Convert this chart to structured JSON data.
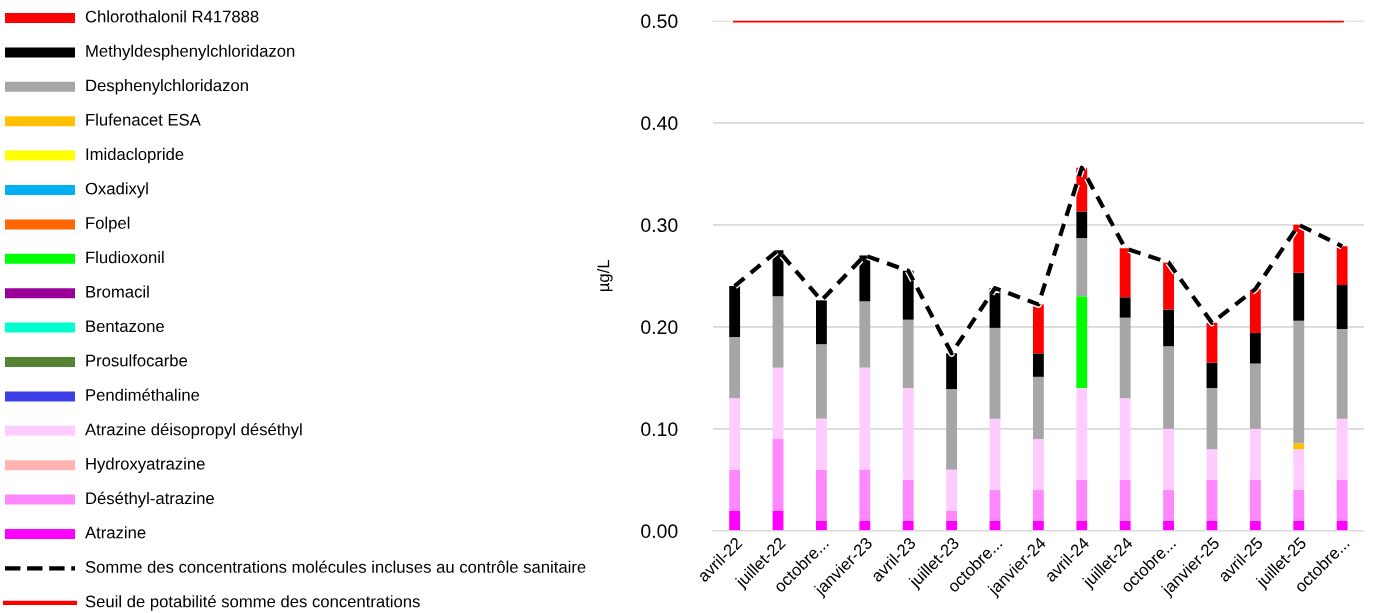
{
  "chart_data": {
    "type": "bar",
    "stacked": true,
    "ylabel": "µg/L",
    "categories": [
      "avril-22",
      "juillet-22",
      "octobre...",
      "janvier-23",
      "avril-23",
      "juillet-23",
      "octobre...",
      "janvier-24",
      "avril-24",
      "juillet-24",
      "octobre...",
      "janvier-25",
      "avril-25",
      "juillet-25",
      "octobre..."
    ],
    "series": [
      {
        "name": "Atrazine",
        "color": "#ff00ff",
        "values": [
          0.02,
          0.02,
          0.01,
          0.01,
          0.01,
          0.01,
          0.01,
          0.01,
          0.01,
          0.01,
          0.01,
          0.01,
          0.01,
          0.01,
          0.01
        ]
      },
      {
        "name": "Déséthyl-atrazine",
        "color": "#ff88ff",
        "values": [
          0.04,
          0.07,
          0.05,
          0.05,
          0.04,
          0.01,
          0.03,
          0.03,
          0.04,
          0.04,
          0.03,
          0.04,
          0.04,
          0.03,
          0.04
        ]
      },
      {
        "name": "Hydroxyatrazine",
        "color": "#ffb3b3",
        "values": [
          null,
          null,
          null,
          null,
          null,
          null,
          null,
          null,
          null,
          null,
          null,
          null,
          null,
          null,
          null
        ]
      },
      {
        "name": "Atrazine déisopropyl déséthyl",
        "color": "#ffccff",
        "values": [
          0.07,
          0.07,
          0.05,
          0.1,
          0.09,
          0.04,
          0.07,
          0.05,
          0.09,
          0.08,
          0.06,
          0.03,
          0.05,
          0.04,
          0.06
        ]
      },
      {
        "name": "Pendiméthaline",
        "color": "#3f3fe8",
        "values": [
          null,
          null,
          null,
          null,
          null,
          null,
          null,
          null,
          null,
          null,
          null,
          null,
          null,
          null,
          null
        ]
      },
      {
        "name": "Prosulfocarbe",
        "color": "#548235",
        "values": [
          null,
          null,
          null,
          null,
          null,
          null,
          null,
          null,
          null,
          null,
          null,
          null,
          null,
          null,
          null
        ]
      },
      {
        "name": "Bentazone",
        "color": "#00ffcc",
        "values": [
          null,
          null,
          null,
          null,
          null,
          null,
          null,
          null,
          null,
          null,
          null,
          null,
          null,
          null,
          null
        ]
      },
      {
        "name": "Bromacil",
        "color": "#990099",
        "values": [
          null,
          null,
          null,
          null,
          null,
          null,
          null,
          null,
          null,
          null,
          null,
          null,
          null,
          null,
          null
        ]
      },
      {
        "name": "Fludioxonil",
        "color": "#00ff00",
        "values": [
          null,
          null,
          null,
          null,
          null,
          null,
          null,
          null,
          0.09,
          null,
          null,
          null,
          null,
          null,
          null
        ]
      },
      {
        "name": "Folpel",
        "color": "#ff6600",
        "values": [
          null,
          null,
          null,
          null,
          null,
          null,
          null,
          null,
          null,
          null,
          null,
          null,
          null,
          null,
          null
        ]
      },
      {
        "name": "Oxadixyl",
        "color": "#00b0f0",
        "values": [
          null,
          null,
          null,
          null,
          null,
          null,
          null,
          null,
          null,
          null,
          null,
          null,
          null,
          null,
          null
        ]
      },
      {
        "name": "Imidaclopride",
        "color": "#ffff00",
        "values": [
          null,
          null,
          null,
          null,
          null,
          null,
          null,
          null,
          null,
          null,
          null,
          null,
          null,
          null,
          null
        ]
      },
      {
        "name": "Flufenacet ESA",
        "color": "#ffc000",
        "values": [
          null,
          null,
          null,
          null,
          null,
          null,
          null,
          null,
          null,
          null,
          null,
          null,
          null,
          0.006,
          null
        ]
      },
      {
        "name": "Desphenylchloridazon",
        "color": "#a6a6a6",
        "values": [
          0.06,
          0.07,
          0.073,
          0.065,
          0.067,
          0.079,
          0.089,
          0.061,
          0.057,
          0.079,
          0.081,
          0.06,
          0.064,
          0.12,
          0.088
        ]
      },
      {
        "name": "Methyldesphenylchloridazon",
        "color": "#000000",
        "values": [
          0.05,
          0.045,
          0.043,
          0.045,
          0.048,
          0.035,
          0.039,
          0.023,
          0.026,
          0.02,
          0.036,
          0.025,
          0.03,
          0.047,
          0.043
        ]
      },
      {
        "name": "Chlorothalonil R417888",
        "color": "#ff0000",
        "values": [
          null,
          null,
          null,
          null,
          null,
          null,
          null,
          0.048,
          0.043,
          0.048,
          0.046,
          0.039,
          0.043,
          0.047,
          0.038
        ]
      },
      {
        "name": "Somme des concentrations molécules incluses au contrôle sanitaire",
        "type": "line",
        "color": "#000000",
        "line_style": "dashed",
        "values": [
          0.24,
          0.275,
          0.226,
          0.27,
          0.255,
          0.174,
          0.238,
          0.222,
          0.356,
          0.277,
          0.263,
          0.204,
          0.237,
          0.3,
          0.279
        ]
      },
      {
        "name": "Seuil de potabilité somme des concentrations",
        "type": "line",
        "color": "#ff0000",
        "line_style": "solid",
        "values": [
          0.5,
          0.5,
          0.5,
          0.5,
          0.5,
          0.5,
          0.5,
          0.5,
          0.5,
          0.5,
          0.5,
          0.5,
          0.5,
          0.5,
          0.5
        ]
      }
    ],
    "ylim": [
      0,
      0.5
    ],
    "yticks": [
      {
        "value": 0,
        "label": "0.00"
      },
      {
        "value": 0.1,
        "label": "0.10"
      },
      {
        "value": 0.2,
        "label": "0.20"
      },
      {
        "value": 0.3,
        "label": "0.30"
      },
      {
        "value": 0.4,
        "label": "0.40"
      },
      {
        "value": 0.5,
        "label": "0.50"
      }
    ],
    "grid": "y",
    "legend": "left"
  }
}
